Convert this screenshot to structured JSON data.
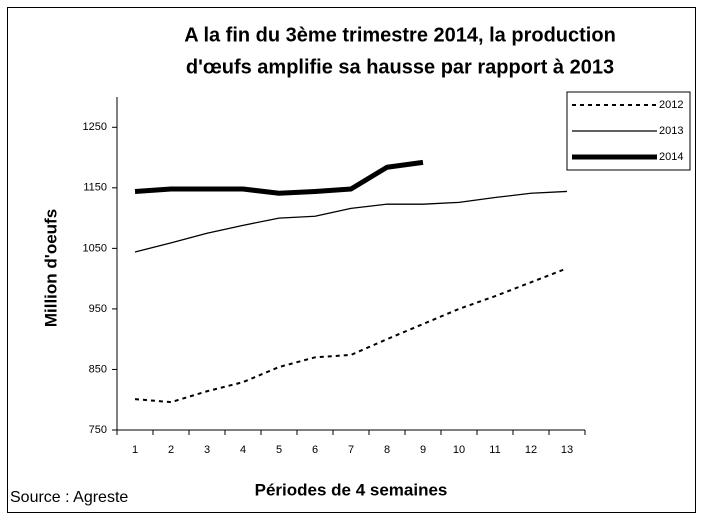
{
  "chart_data": {
    "type": "line",
    "title": [
      "A la fin du 3ème trimestre 2014, la production",
      "d'œufs amplifie sa  hausse par rapport à 2013"
    ],
    "xlabel": "Périodes de 4 semaines",
    "ylabel": "Million d'oeufs",
    "source": "Source : Agreste",
    "categories": [
      "1",
      "2",
      "3",
      "4",
      "5",
      "6",
      "7",
      "8",
      "9",
      "10",
      "11",
      "12",
      "13"
    ],
    "series": [
      {
        "name": "2012",
        "color": "#000000",
        "style": "dotted",
        "width": 2,
        "values": [
          801,
          796,
          814,
          829,
          854,
          870,
          874,
          900,
          925,
          950,
          971,
          994,
          1017
        ]
      },
      {
        "name": "2013",
        "color": "#000000",
        "style": "solid",
        "width": 1.3,
        "values": [
          1044,
          1059,
          1075,
          1088,
          1100,
          1103,
          1116,
          1123,
          1123,
          1126,
          1134,
          1141,
          1144
        ]
      },
      {
        "name": "2014",
        "color": "#000000",
        "style": "solid",
        "width": 5,
        "values": [
          1144,
          1148,
          1148,
          1148,
          1141,
          1144,
          1148,
          1184,
          1192,
          null,
          null,
          null,
          null
        ]
      }
    ],
    "ylim": [
      750,
      1300
    ],
    "yticks": [
      750,
      850,
      950,
      1050,
      1150,
      1250
    ],
    "grid": false,
    "legend": "upper right"
  }
}
